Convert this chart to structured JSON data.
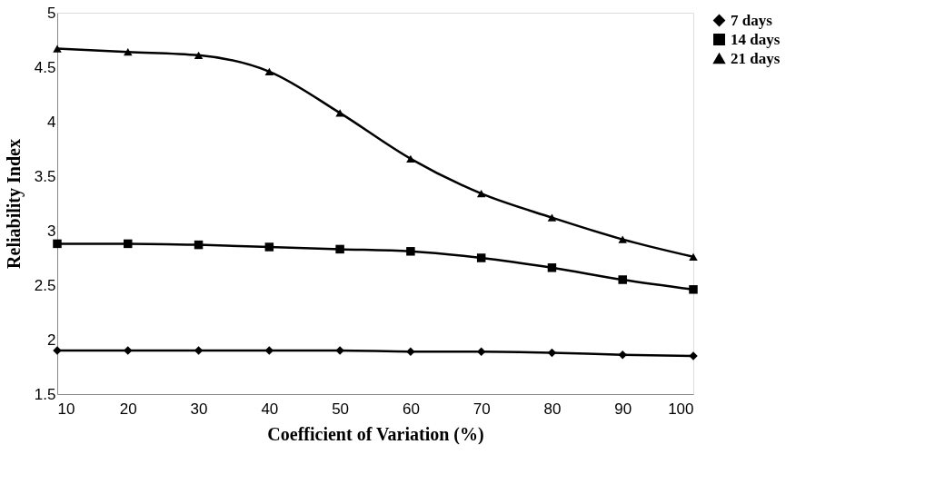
{
  "chart_data": {
    "type": "line",
    "xlabel": "Coefficient of Variation (%)",
    "ylabel": "Reliability Index",
    "x": [
      10,
      20,
      30,
      40,
      50,
      60,
      70,
      80,
      90,
      100
    ],
    "xlim": [
      10,
      100
    ],
    "xticks": [
      10,
      20,
      30,
      40,
      50,
      60,
      70,
      80,
      90,
      100
    ],
    "ylim": [
      1.5,
      5
    ],
    "yticks": [
      1.5,
      2,
      2.5,
      3,
      3.5,
      4,
      4.5,
      5
    ],
    "grid": false,
    "legend": "right",
    "line_style": "solid",
    "series": [
      {
        "name": "7 days",
        "color": "#000000",
        "marker": "diamond",
        "values": [
          1.9,
          1.9,
          1.9,
          1.9,
          1.9,
          1.89,
          1.89,
          1.88,
          1.86,
          1.85
        ]
      },
      {
        "name": "14 days",
        "color": "#000000",
        "marker": "square",
        "values": [
          2.88,
          2.88,
          2.87,
          2.85,
          2.83,
          2.81,
          2.75,
          2.66,
          2.55,
          2.46
        ]
      },
      {
        "name": "21 days",
        "color": "#000000",
        "marker": "triangle",
        "values": [
          4.67,
          4.64,
          4.61,
          4.46,
          4.08,
          3.66,
          3.34,
          3.12,
          2.92,
          2.76
        ]
      }
    ]
  }
}
